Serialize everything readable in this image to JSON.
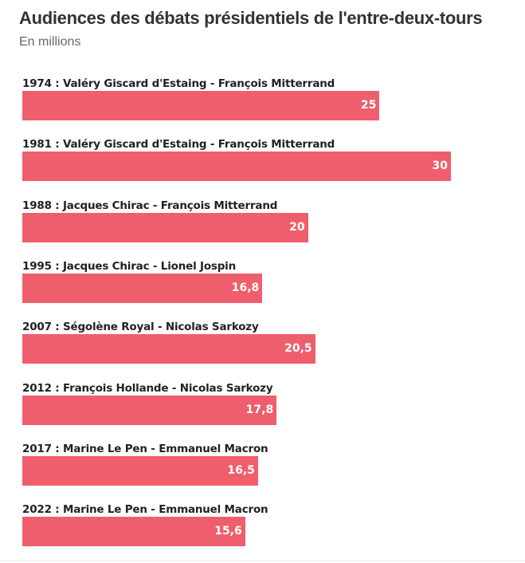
{
  "chart_data": {
    "type": "bar",
    "orientation": "horizontal",
    "title": "Audiences des débats présidentiels de l'entre-deux-tours",
    "subtitle": "En millions",
    "categories": [
      "1974 : Valéry Giscard d'Estaing - François Mitterrand",
      "1981 : Valéry Giscard d'Estaing - François Mitterrand",
      "1988 : Jacques Chirac - François Mitterrand",
      "1995 : Jacques Chirac - Lionel Jospin",
      "2007 : Ségolène Royal - Nicolas Sarkozy",
      "2012 : François Hollande - Nicolas Sarkozy",
      "2017 : Marine Le Pen - Emmanuel Macron",
      "2022 : Marine Le Pen - Emmanuel Macron"
    ],
    "values": [
      25,
      30,
      20,
      16.8,
      20.5,
      17.8,
      16.5,
      15.6
    ],
    "value_labels": [
      "25",
      "30",
      "20",
      "16,8",
      "20,5",
      "17,8",
      "16,5",
      "15,6"
    ],
    "xlim": [
      0,
      30
    ],
    "grid": false,
    "legend": "none",
    "bar_color": "#ef5e6c"
  }
}
